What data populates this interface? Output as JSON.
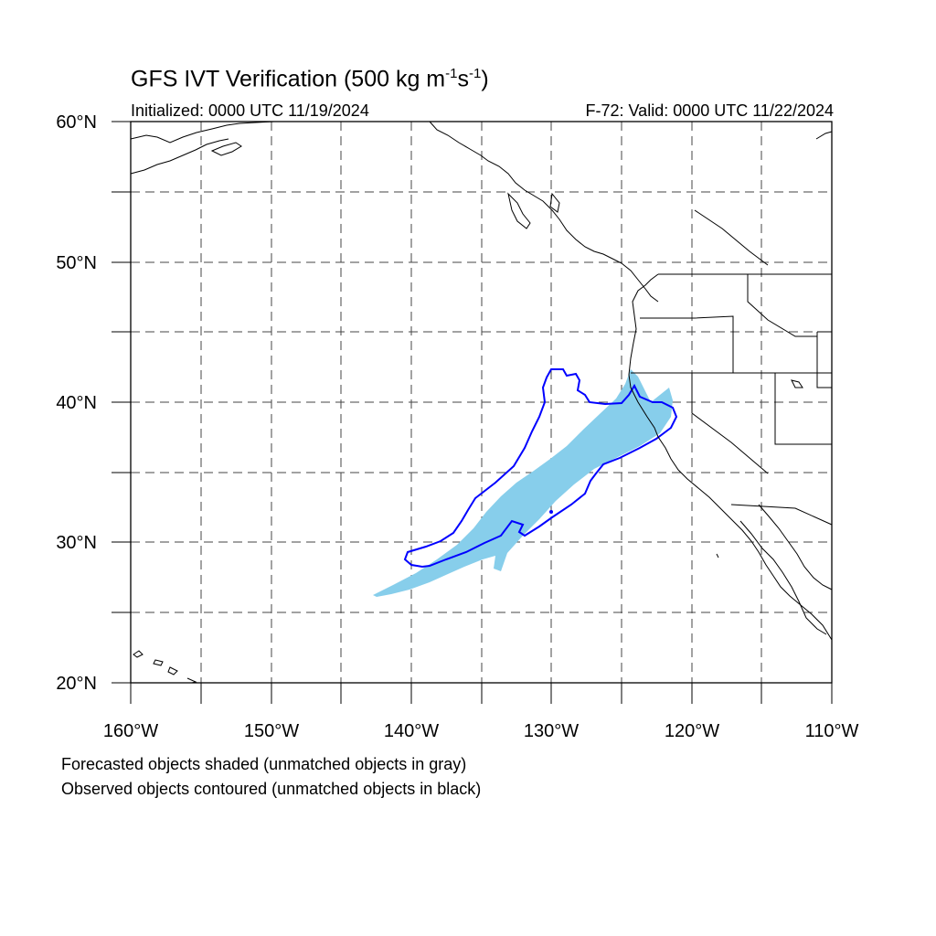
{
  "title": {
    "main": "GFS IVT Verification (500 kg m",
    "sup1": "-1",
    "mid": "s",
    "sup2": "-1",
    "end": ")"
  },
  "init_text": "Initialized: 0000 UTC 11/19/2024",
  "valid_text": "F-72: Valid: 0000 UTC 11/22/2024",
  "map": {
    "lon_range": [
      -160,
      -110
    ],
    "lat_range": [
      20,
      60
    ],
    "lat_labels": [
      "60°N",
      "50°N",
      "40°N",
      "30°N",
      "20°N"
    ],
    "lon_labels": [
      "160°W",
      "150°W",
      "140°W",
      "130°W",
      "120°W",
      "110°W"
    ],
    "gridlines": "dashed every 5 degrees",
    "colors": {
      "forecast_fill": "#87ceeb",
      "observed_contour": "#0000ff",
      "coastline": "#000000",
      "grid": "#555555"
    }
  },
  "legend_notes": [
    "Forecasted objects shaded (unmatched objects in gray)",
    "Observed objects contoured (unmatched objects in black)"
  ]
}
